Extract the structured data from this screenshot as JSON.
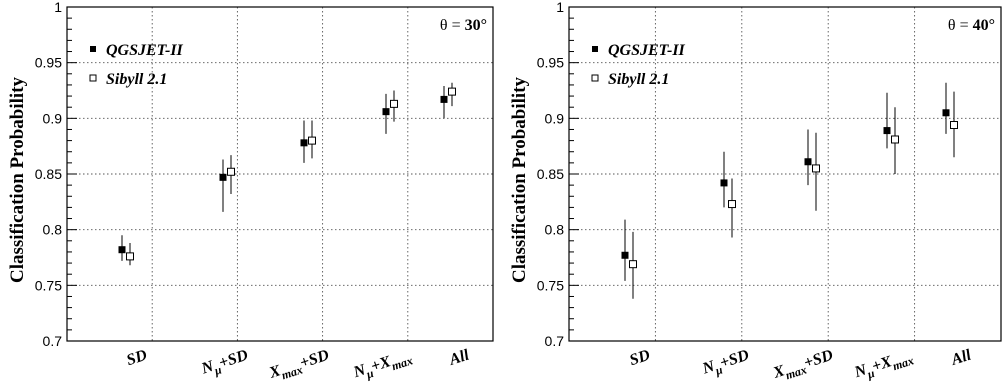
{
  "chart_data": [
    {
      "type": "scatter",
      "ylabel": "Classification Probability",
      "annotation": {
        "prefix": "θ = ",
        "value": "30°"
      },
      "ylim": [
        0.7,
        1.0
      ],
      "yticks": [
        "0.7",
        "0.75",
        "0.8",
        "0.85",
        "0.9",
        "0.95",
        "1"
      ],
      "grid": true,
      "legend_position": "top-left",
      "categories": [
        {
          "base": "SD",
          "sub1": "",
          "mid": "",
          "sub2": ""
        },
        {
          "base": "N",
          "sub1": "μ",
          "mid": "+SD",
          "sub2": ""
        },
        {
          "base": "X",
          "sub1": "max",
          "mid": "+SD",
          "sub2": ""
        },
        {
          "base": "N",
          "sub1": "μ",
          "mid": "+X",
          "sub2": "max"
        },
        {
          "base": "All",
          "sub1": "",
          "mid": "",
          "sub2": ""
        }
      ],
      "series": [
        {
          "name": "QGSJET-II",
          "marker": "filled-square",
          "values": [
            0.782,
            0.847,
            0.878,
            0.906,
            0.917
          ],
          "err_low": [
            0.01,
            0.031,
            0.018,
            0.02,
            0.017
          ],
          "err_high": [
            0.013,
            0.016,
            0.02,
            0.016,
            0.012
          ]
        },
        {
          "name": "Sibyll 2.1",
          "marker": "open-square",
          "values": [
            0.776,
            0.852,
            0.88,
            0.913,
            0.924
          ],
          "err_low": [
            0.008,
            0.02,
            0.016,
            0.016,
            0.013
          ],
          "err_high": [
            0.012,
            0.015,
            0.018,
            0.012,
            0.008
          ]
        }
      ]
    },
    {
      "type": "scatter",
      "ylabel": "Classification Probability",
      "annotation": {
        "prefix": "θ = ",
        "value": "40°"
      },
      "ylim": [
        0.7,
        1.0
      ],
      "yticks": [
        "0.7",
        "0.75",
        "0.8",
        "0.85",
        "0.9",
        "0.95",
        "1"
      ],
      "grid": true,
      "legend_position": "top-left",
      "categories": [
        {
          "base": "SD",
          "sub1": "",
          "mid": "",
          "sub2": ""
        },
        {
          "base": "N",
          "sub1": "μ",
          "mid": "+SD",
          "sub2": ""
        },
        {
          "base": "X",
          "sub1": "max",
          "mid": "+SD",
          "sub2": ""
        },
        {
          "base": "N",
          "sub1": "μ",
          "mid": "+X",
          "sub2": "max"
        },
        {
          "base": "All",
          "sub1": "",
          "mid": "",
          "sub2": ""
        }
      ],
      "series": [
        {
          "name": "QGSJET-II",
          "marker": "filled-square",
          "values": [
            0.777,
            0.842,
            0.861,
            0.889,
            0.905
          ],
          "err_low": [
            0.023,
            0.022,
            0.021,
            0.016,
            0.019
          ],
          "err_high": [
            0.032,
            0.028,
            0.029,
            0.034,
            0.027
          ]
        },
        {
          "name": "Sibyll 2.1",
          "marker": "open-square",
          "values": [
            0.769,
            0.823,
            0.855,
            0.881,
            0.894
          ],
          "err_low": [
            0.031,
            0.03,
            0.038,
            0.031,
            0.029
          ],
          "err_high": [
            0.029,
            0.023,
            0.032,
            0.029,
            0.03
          ]
        }
      ]
    }
  ]
}
